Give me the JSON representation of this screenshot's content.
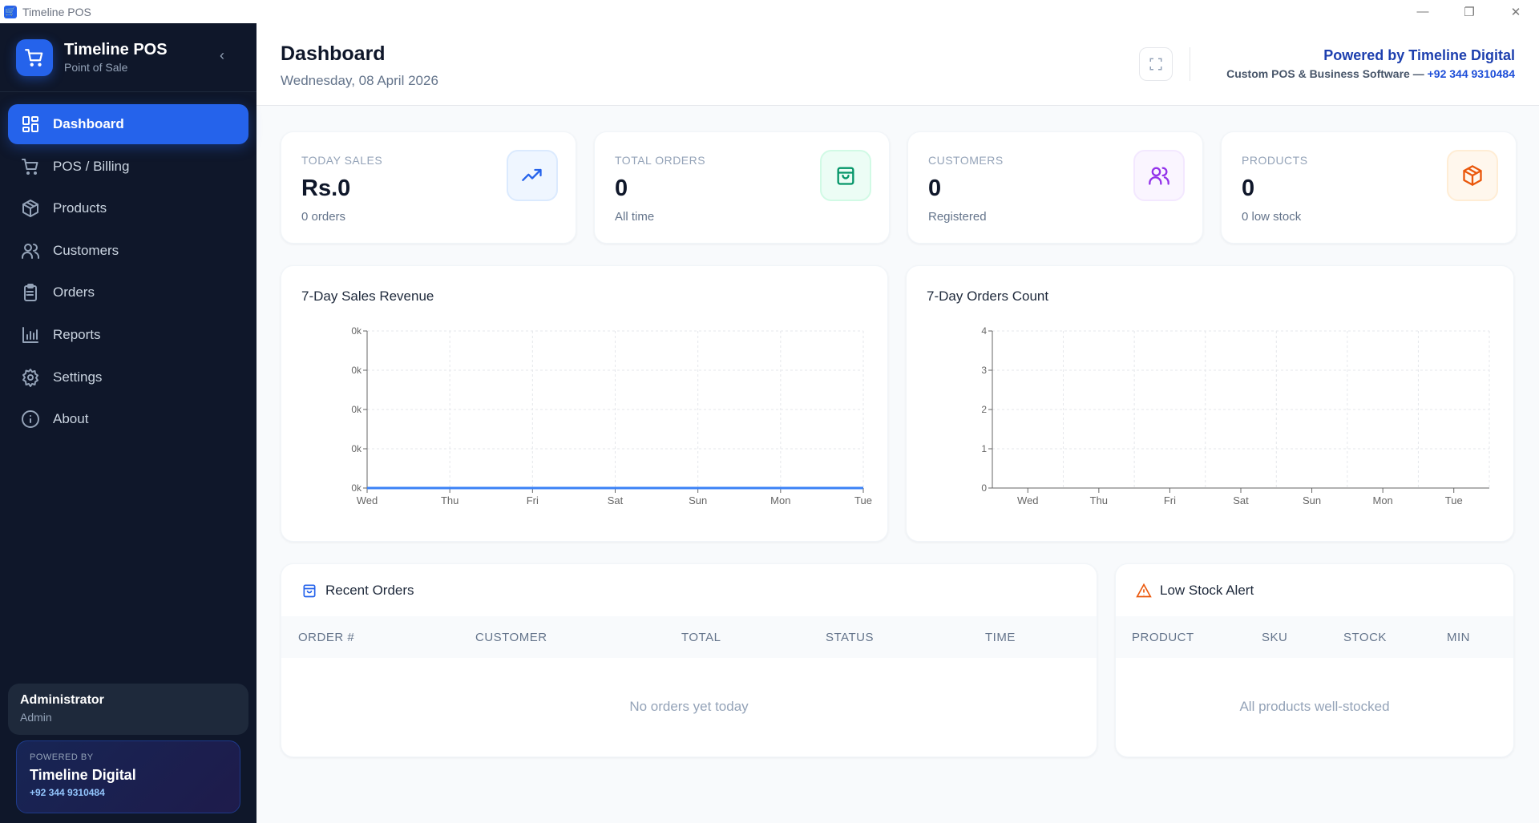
{
  "window": {
    "title": "Timeline POS",
    "controls": [
      "minimize",
      "restore",
      "close"
    ]
  },
  "sidebar": {
    "brand": {
      "name": "Timeline POS",
      "subtitle": "Point of Sale"
    },
    "items": [
      {
        "label": "Dashboard",
        "icon": "dashboard-icon",
        "active": true
      },
      {
        "label": "POS / Billing",
        "icon": "cart-icon"
      },
      {
        "label": "Products",
        "icon": "package-icon"
      },
      {
        "label": "Customers",
        "icon": "users-icon"
      },
      {
        "label": "Orders",
        "icon": "clipboard-icon"
      },
      {
        "label": "Reports",
        "icon": "bar-chart-icon"
      },
      {
        "label": "Settings",
        "icon": "gear-icon"
      },
      {
        "label": "About",
        "icon": "info-icon"
      }
    ],
    "user": {
      "name": "Administrator",
      "role": "Admin"
    },
    "powered": {
      "label": "POWERED BY",
      "company": "Timeline Digital",
      "phone": "+92 344 9310484"
    }
  },
  "header": {
    "title": "Dashboard",
    "date": "Wednesday, 08 April 2026",
    "powered": "Powered by Timeline Digital",
    "tagline": "Custom POS & Business Software — ",
    "phone": "+92 344 9310484"
  },
  "stats": [
    {
      "label": "TODAY SALES",
      "value": "Rs.0",
      "sub": "0 orders",
      "icon": "trending-up-icon",
      "color": "#2563eb",
      "bg": "#eff6ff",
      "border": "#dbeafe"
    },
    {
      "label": "TOTAL ORDERS",
      "value": "0",
      "sub": "All time",
      "icon": "shopping-bag-icon",
      "color": "#059669",
      "bg": "#ecfdf5",
      "border": "#d1fae5"
    },
    {
      "label": "CUSTOMERS",
      "value": "0",
      "sub": "Registered",
      "icon": "users-icon",
      "color": "#9333ea",
      "bg": "#faf5ff",
      "border": "#f3e8ff"
    },
    {
      "label": "PRODUCTS",
      "value": "0",
      "sub": "0 low stock",
      "icon": "package-icon",
      "color": "#ea580c",
      "bg": "#fff7ed",
      "border": "#ffedd5"
    }
  ],
  "chart_data": [
    {
      "type": "line",
      "title": "7-Day Sales Revenue",
      "categories": [
        "Wed",
        "Thu",
        "Fri",
        "Sat",
        "Sun",
        "Mon",
        "Tue"
      ],
      "values": [
        0,
        0,
        0,
        0,
        0,
        0,
        0
      ],
      "yticks": [
        "0k",
        "0k",
        "0k",
        "0k",
        "0k"
      ],
      "grid": true,
      "color": "#3b82f6"
    },
    {
      "type": "bar",
      "title": "7-Day Orders Count",
      "categories": [
        "Wed",
        "Thu",
        "Fri",
        "Sat",
        "Sun",
        "Mon",
        "Tue"
      ],
      "values": [
        0,
        0,
        0,
        0,
        0,
        0,
        0
      ],
      "yticks": [
        "0",
        "1",
        "2",
        "3",
        "4"
      ],
      "ylim": [
        0,
        4
      ],
      "grid": true,
      "color": "#10b981"
    }
  ],
  "recent_orders": {
    "title": "Recent Orders",
    "columns": [
      "ORDER #",
      "CUSTOMER",
      "TOTAL",
      "STATUS",
      "TIME"
    ],
    "empty": "No orders yet today"
  },
  "low_stock": {
    "title": "Low Stock Alert",
    "columns": [
      "PRODUCT",
      "SKU",
      "STOCK",
      "MIN"
    ],
    "empty": "All products well-stocked"
  }
}
